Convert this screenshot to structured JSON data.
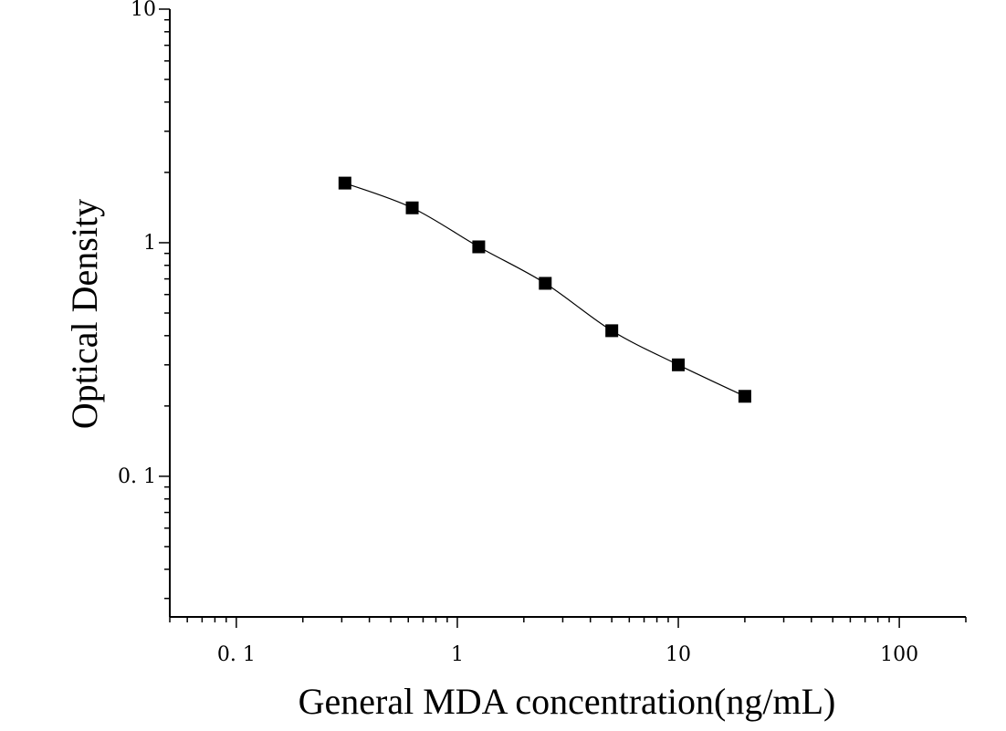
{
  "chart_data": {
    "type": "scatter",
    "title": "",
    "xlabel": "General MDA concentration(ng/mL)",
    "ylabel": "Optical Density",
    "x_scale": "log",
    "y_scale": "log",
    "xlim": [
      0.05,
      200
    ],
    "ylim": [
      0.025,
      10
    ],
    "x_ticks": [
      {
        "value": 0.1,
        "label": "0. 1"
      },
      {
        "value": 1,
        "label": "1"
      },
      {
        "value": 10,
        "label": "10"
      },
      {
        "value": 100,
        "label": "100"
      }
    ],
    "y_ticks": [
      {
        "value": 0.1,
        "label": "0. 1"
      },
      {
        "value": 1,
        "label": "1"
      },
      {
        "value": 10,
        "label": "10"
      }
    ],
    "grid": false,
    "series": [
      {
        "marker": "square",
        "color": "#000000",
        "fit_curve": true,
        "points": [
          {
            "x": 0.31,
            "y": 1.8
          },
          {
            "x": 0.625,
            "y": 1.41
          },
          {
            "x": 1.25,
            "y": 0.96
          },
          {
            "x": 2.5,
            "y": 0.67
          },
          {
            "x": 5,
            "y": 0.42
          },
          {
            "x": 10,
            "y": 0.3
          },
          {
            "x": 20,
            "y": 0.22
          }
        ]
      }
    ]
  }
}
